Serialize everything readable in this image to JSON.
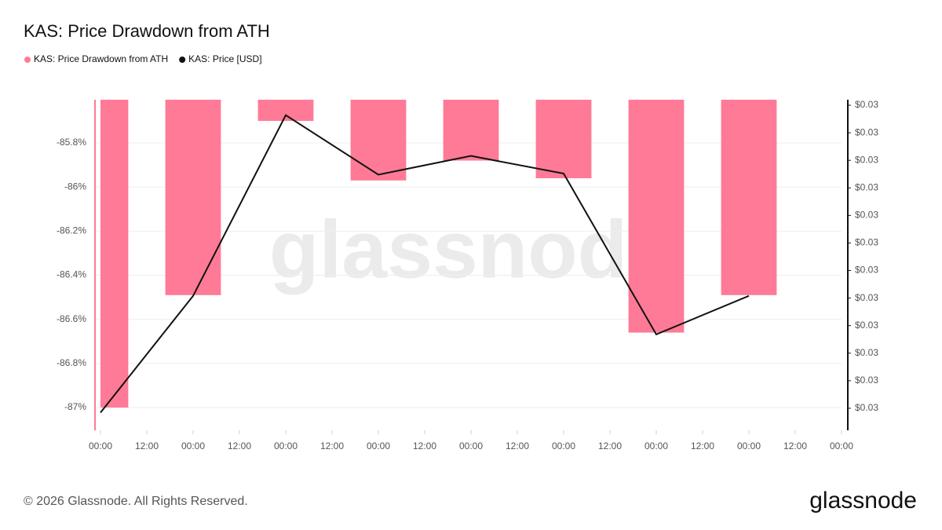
{
  "chart_data": {
    "type": "bar",
    "title": "KAS: Price Drawdown from ATH",
    "x": [
      0,
      24,
      48,
      72,
      96,
      120,
      144,
      168
    ],
    "xlim": [
      0,
      192
    ],
    "xticks": [
      {
        "value": 0,
        "label": "00:00"
      },
      {
        "value": 12,
        "label": "12:00"
      },
      {
        "value": 24,
        "label": "00:00"
      },
      {
        "value": 36,
        "label": "12:00"
      },
      {
        "value": 48,
        "label": "00:00"
      },
      {
        "value": 60,
        "label": "12:00"
      },
      {
        "value": 72,
        "label": "00:00"
      },
      {
        "value": 84,
        "label": "12:00"
      },
      {
        "value": 96,
        "label": "00:00"
      },
      {
        "value": 108,
        "label": "12:00"
      },
      {
        "value": 120,
        "label": "00:00"
      },
      {
        "value": 132,
        "label": "12:00"
      },
      {
        "value": 144,
        "label": "00:00"
      },
      {
        "value": 156,
        "label": "12:00"
      },
      {
        "value": 168,
        "label": "00:00"
      },
      {
        "value": 180,
        "label": "12:00"
      },
      {
        "value": 192,
        "label": "00:00"
      }
    ],
    "ylim": [
      -87.103,
      -85.604
    ],
    "yticks": [
      {
        "value": -85.8,
        "label": "-85.8%"
      },
      {
        "value": -86,
        "label": "-86%"
      },
      {
        "value": -86.2,
        "label": "-86.2%"
      },
      {
        "value": -86.4,
        "label": "-86.4%"
      },
      {
        "value": -86.6,
        "label": "-86.6%"
      },
      {
        "value": -86.8,
        "label": "-86.8%"
      },
      {
        "value": -87,
        "label": "-87%"
      }
    ],
    "y2lim": [
      0.027,
      0.03
    ],
    "y2ticks": [
      {
        "value": 0.0272,
        "label": "$0.03"
      },
      {
        "value": 0.02745,
        "label": "$0.03"
      },
      {
        "value": 0.0277,
        "label": "$0.03"
      },
      {
        "value": 0.02795,
        "label": "$0.03"
      },
      {
        "value": 0.0282,
        "label": "$0.03"
      },
      {
        "value": 0.02845,
        "label": "$0.03"
      },
      {
        "value": 0.0287,
        "label": "$0.03"
      },
      {
        "value": 0.02895,
        "label": "$0.03"
      },
      {
        "value": 0.0292,
        "label": "$0.03"
      },
      {
        "value": 0.02945,
        "label": "$0.03"
      },
      {
        "value": 0.0297,
        "label": "$0.03"
      },
      {
        "value": 0.02995,
        "label": "$0.03"
      }
    ],
    "grid": true,
    "series": [
      {
        "name": "KAS: Price Drawdown from ATH",
        "type": "bar",
        "color": "#ff7a96",
        "values": [
          -87.0,
          -86.49,
          -85.7,
          -85.97,
          -85.88,
          -85.96,
          -86.66,
          -86.49
        ]
      },
      {
        "name": "KAS: Price [USD]",
        "type": "line",
        "axis": "y2",
        "color": "#111111",
        "values": [
          0.02716,
          0.02822,
          0.02986,
          0.02932,
          0.02949,
          0.02933,
          0.02787,
          0.02822
        ]
      }
    ],
    "watermark": "glassnode"
  },
  "footer": {
    "copyright": "© 2026 Glassnode. All Rights Reserved.",
    "logo": "glassnode"
  }
}
